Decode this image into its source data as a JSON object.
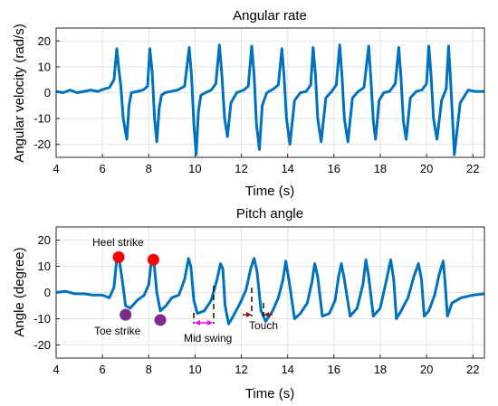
{
  "chart_data": [
    {
      "type": "line",
      "title": "Angular rate",
      "xlabel": "Time (s)",
      "ylabel": "Angular velocity (rad/s)",
      "xlim": [
        4,
        22.5
      ],
      "ylim": [
        -25,
        25
      ],
      "xticks": [
        "4",
        "6",
        "8",
        "10",
        "12",
        "14",
        "16",
        "18",
        "20",
        "22"
      ],
      "yticks": [
        "-20",
        "-10",
        "0",
        "10",
        "20"
      ],
      "grid": true,
      "line_color": "#0072BD",
      "series": [
        {
          "x": [
            4.0,
            4.3,
            4.6,
            4.9,
            5.2,
            5.5,
            5.8,
            6.1,
            6.3,
            6.5,
            6.62,
            6.7,
            6.8,
            6.9,
            7.05,
            7.15,
            7.25,
            7.5,
            7.75,
            7.95,
            8.05,
            8.15,
            8.25,
            8.35,
            8.45,
            8.55,
            8.7,
            8.95,
            9.25,
            9.55,
            9.75,
            9.85,
            9.95,
            10.05,
            10.15,
            10.25,
            10.45,
            10.7,
            10.9,
            11.05,
            11.15,
            11.28,
            11.4,
            11.55,
            11.8,
            12.1,
            12.3,
            12.45,
            12.55,
            12.65,
            12.78,
            12.9,
            13.1,
            13.4,
            13.6,
            13.75,
            13.85,
            13.95,
            14.1,
            14.3,
            14.55,
            14.8,
            15.0,
            15.1,
            15.2,
            15.3,
            15.45,
            15.65,
            15.9,
            16.1,
            16.25,
            16.35,
            16.45,
            16.6,
            16.8,
            17.05,
            17.3,
            17.5,
            17.6,
            17.7,
            17.8,
            17.95,
            18.15,
            18.4,
            18.65,
            18.8,
            18.9,
            19.0,
            19.12,
            19.3,
            19.55,
            19.8,
            20.0,
            20.1,
            20.2,
            20.3,
            20.45,
            20.65,
            20.85,
            20.95,
            21.05,
            21.2,
            21.45,
            21.8,
            22.1,
            22.5
          ],
          "y": [
            0.5,
            0.0,
            1.0,
            0.0,
            0.5,
            1.0,
            0.5,
            1.5,
            2.0,
            5.0,
            17.0,
            10.0,
            2.0,
            -10.0,
            -18.0,
            -5.0,
            0.0,
            0.5,
            1.0,
            2.5,
            17.0,
            8.0,
            -10.0,
            -19.0,
            -6.0,
            -1.0,
            0.0,
            0.5,
            1.0,
            2.5,
            17.5,
            6.0,
            -12.0,
            -24.0,
            -7.0,
            -1.0,
            0.0,
            1.0,
            3.5,
            18.5,
            8.0,
            -10.0,
            -17.0,
            -4.0,
            0.0,
            1.0,
            2.5,
            18.0,
            7.0,
            -12.0,
            -22.0,
            -5.0,
            0.0,
            1.5,
            3.0,
            17.0,
            6.0,
            -10.0,
            -20.0,
            -3.0,
            0.0,
            0.5,
            3.0,
            17.5,
            7.0,
            -10.0,
            -19.0,
            -2.0,
            0.5,
            3.0,
            18.5,
            6.0,
            -10.0,
            -19.0,
            -2.0,
            0.5,
            2.0,
            18.0,
            5.0,
            -11.0,
            -18.0,
            -3.0,
            0.0,
            0.5,
            3.5,
            17.5,
            5.0,
            -11.0,
            -18.0,
            -2.0,
            0.5,
            1.0,
            3.5,
            18.0,
            6.0,
            -10.0,
            -18.0,
            -3.0,
            1.5,
            18.0,
            3.0,
            -24.0,
            -4.0,
            1.0,
            0.5,
            0.5
          ]
        }
      ]
    },
    {
      "type": "line",
      "title": "Pitch angle",
      "xlabel": "Time (s)",
      "ylabel": "Angle (degree)",
      "xlim": [
        4,
        22.5
      ],
      "ylim": [
        -25,
        25
      ],
      "xticks": [
        "4",
        "6",
        "8",
        "10",
        "12",
        "14",
        "16",
        "18",
        "20",
        "22"
      ],
      "yticks": [
        "-20",
        "-10",
        "0",
        "10",
        "20"
      ],
      "grid": true,
      "line_color": "#0072BD",
      "series": [
        {
          "x": [
            4.0,
            4.4,
            4.8,
            5.2,
            5.6,
            6.0,
            6.3,
            6.5,
            6.62,
            6.72,
            6.85,
            7.0,
            7.2,
            7.5,
            7.8,
            8.0,
            8.12,
            8.22,
            8.35,
            8.5,
            8.75,
            9.0,
            9.3,
            9.55,
            9.72,
            9.82,
            9.95,
            10.1,
            10.4,
            10.7,
            10.95,
            11.1,
            11.2,
            11.3,
            11.45,
            11.65,
            11.95,
            12.2,
            12.4,
            12.55,
            12.68,
            12.85,
            13.05,
            13.35,
            13.6,
            13.8,
            13.92,
            14.05,
            14.3,
            14.55,
            14.85,
            15.05,
            15.17,
            15.3,
            15.5,
            15.8,
            16.05,
            16.2,
            16.32,
            16.45,
            16.7,
            17.0,
            17.25,
            17.38,
            17.5,
            17.7,
            18.0,
            18.25,
            18.45,
            18.58,
            18.7,
            18.9,
            19.2,
            19.45,
            19.65,
            19.78,
            19.9,
            20.1,
            20.35,
            20.55,
            20.72,
            20.8,
            20.9,
            21.1,
            21.5,
            22.0,
            22.5
          ],
          "y": [
            0.0,
            0.5,
            -0.5,
            -0.5,
            -1.0,
            -1.0,
            -2.0,
            2.0,
            13.0,
            13.0,
            5.0,
            -5.0,
            -6.0,
            -3.0,
            -1.0,
            3.0,
            12.5,
            12.0,
            0.0,
            -7.0,
            -5.0,
            -2.0,
            -1.0,
            5.0,
            13.0,
            10.0,
            -3.0,
            -8.0,
            -7.0,
            -3.0,
            5.0,
            11.0,
            9.0,
            -5.0,
            -12.0,
            -9.0,
            -4.0,
            1.0,
            9.0,
            13.0,
            8.0,
            -7.0,
            -11.0,
            -7.0,
            -2.0,
            5.0,
            12.0,
            5.0,
            -10.0,
            -8.0,
            -4.0,
            4.0,
            11.0,
            6.0,
            -9.0,
            -8.0,
            -3.0,
            6.0,
            11.0,
            5.0,
            -9.0,
            -6.0,
            3.0,
            12.5,
            6.0,
            -9.0,
            -6.0,
            4.0,
            12.5,
            5.0,
            -10.0,
            -7.0,
            -2.0,
            6.0,
            11.0,
            5.0,
            -9.0,
            -7.0,
            -1.0,
            7.0,
            12.0,
            4.0,
            -9.0,
            -4.0,
            -2.0,
            -1.0,
            -0.5
          ]
        }
      ],
      "markers": [
        {
          "x": 6.7,
          "y": 13.5,
          "color": "#ff0000"
        },
        {
          "x": 8.2,
          "y": 12.5,
          "color": "#ff0000"
        },
        {
          "x": 7.0,
          "y": -8.5,
          "color": "#7b2d8e"
        },
        {
          "x": 8.5,
          "y": -10.5,
          "color": "#7b2d8e"
        }
      ],
      "annotations": {
        "heel_strike": "Heel strike",
        "toe_strike": "Toe strike",
        "mid_swing": "Mid swing",
        "touch": "Touch"
      }
    }
  ]
}
